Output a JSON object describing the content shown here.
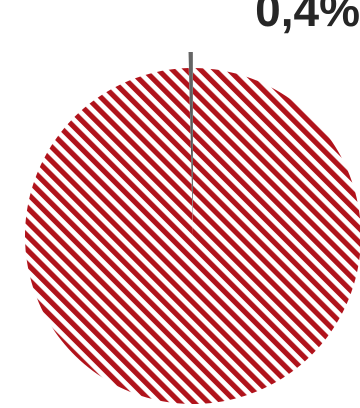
{
  "chart_data": {
    "type": "pie",
    "title": "",
    "slices": [
      {
        "label": "",
        "value": 99.6,
        "display": "",
        "color": "#b0131b",
        "pattern": "diagonal-stripes"
      },
      {
        "label": "",
        "value": 0.4,
        "display": "0,4%",
        "color": "#595959",
        "pattern": "gradient",
        "exploded": true
      }
    ],
    "legend": "none",
    "start_angle_deg": 0,
    "direction": "clockwise"
  }
}
